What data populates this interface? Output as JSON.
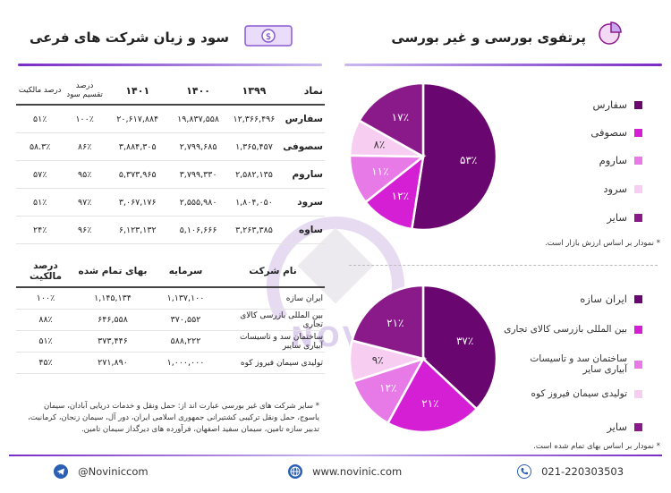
{
  "colors": {
    "dark_purple": "#6a0670",
    "magenta": "#d41fd4",
    "pink": "#e87ae8",
    "light_pink": "#f7cdf2",
    "purple": "#8a1a8a",
    "accent_line": "#7a2cc6"
  },
  "right_panel": {
    "title": "پرتفوی بورسی و غیر بورسی",
    "title_icon": "pie-chart-icon",
    "legend_top": [
      "سفارس",
      "سصوفی",
      "ساروم",
      "سرود",
      "سایر"
    ],
    "note_top": "* نمودار بر اساس ارزش بازار است.",
    "legend_bottom": [
      "ایران سازه",
      "بین المللی بازرسی کالای تجاری",
      "ساختمان سد و تاسیسات آبیاری سایر",
      "تولیدی سیمان فیروز کوه",
      "سایر"
    ],
    "note_bottom": "* نمودار بر اساس بهای تمام شده است."
  },
  "left_panel": {
    "title": "سود و زیان شرکت های فرعی",
    "title_icon": "money-bill-icon",
    "table1": {
      "headers": [
        "نماد",
        "۱۳۹۹",
        "۱۴۰۰",
        "۱۴۰۱",
        "درصد تقسیم سود",
        "درصد مالکیت"
      ],
      "rows": [
        [
          "سفارس",
          "۱۲,۳۶۶,۴۹۶",
          "۱۹,۸۳۷,۵۵۸",
          "۲۰,۶۱۷,۸۸۴",
          "۱۰۰٪",
          "۵۱٪"
        ],
        [
          "سصوفی",
          "۱,۳۶۵,۴۵۷",
          "۲,۷۹۹,۶۸۵",
          "۳,۸۸۴,۳۰۵",
          "۸۶٪",
          "۵۸.۳٪"
        ],
        [
          "ساروم",
          "۲,۵۸۲,۱۳۵",
          "۳,۷۹۹,۳۳۰",
          "۵,۳۷۳,۹۶۵",
          "۹۵٪",
          "۵۷٪"
        ],
        [
          "سرود",
          "۱,۸۰۴,۰۵۰",
          "۲,۵۵۵,۹۸۰",
          "۳,۰۶۷,۱۷۶",
          "۹۷٪",
          "۵۱٪"
        ],
        [
          "ساوه",
          "۳,۲۶۳,۳۸۵",
          "۵,۱۰۶,۶۶۶",
          "۶,۱۲۳,۱۳۲",
          "۹۶٪",
          "۲۴٪"
        ]
      ]
    },
    "table2": {
      "headers": [
        "نام شرکت",
        "سرمایه",
        "بهای تمام شده",
        "درصد مالکیت"
      ],
      "rows": [
        [
          "ایران سازه",
          "۱,۱۳۷,۱۰۰",
          "۱,۱۴۵,۱۳۴",
          "۱۰۰٪"
        ],
        [
          "بین المللی بازرسی کالای تجاری",
          "۳۷۰,۵۵۲",
          "۶۴۶,۵۵۸",
          "۸۸٪"
        ],
        [
          "ساختمان سد و تاسیسات آبیاری سایبر",
          "۵۸۸,۲۲۲",
          "۳۷۳,۴۴۶",
          "۵۱٪"
        ],
        [
          "تولیدی سیمان فیروز کوه",
          "۱,۰۰۰,۰۰۰",
          "۲۷۱,۸۹۰",
          "۴۵٪"
        ]
      ]
    },
    "note": "* سایر شرکت های غیر بورسی عبارت اند از: حمل ونقل و خدمات دریایی آبادان، سیمان یاسوج، حمل ونقل ترکیبی کشتیرانی جمهوری اسلامی ایران، دور آل، سیمان زنجان، کرمانیت، تدبیر سازه تامین، سیمان سفید اصفهان، فرآورده های دیرگداز سیمان تامین."
  },
  "chart_data": [
    {
      "type": "pie",
      "slices": [
        {
          "label": "سفارس",
          "value": 53,
          "text": "۵۳٪",
          "color": "#6a0670"
        },
        {
          "label": "سصوفی",
          "value": 12,
          "text": "۱۲٪",
          "color": "#d41fd4"
        },
        {
          "label": "ساروم",
          "value": 11,
          "text": "۱۱٪",
          "color": "#e87ae8"
        },
        {
          "label": "سرود",
          "value": 8,
          "text": "۸٪",
          "color": "#f7cdf2"
        },
        {
          "label": "سایر",
          "value": 17,
          "text": "۱۷٪",
          "color": "#8a1a8a"
        }
      ]
    },
    {
      "type": "pie",
      "slices": [
        {
          "label": "ایران سازه",
          "value": 37,
          "text": "۳۷٪",
          "color": "#6a0670"
        },
        {
          "label": "بین المللی بازرسی کالای تجاری",
          "value": 21,
          "text": "۲۱٪",
          "color": "#d41fd4"
        },
        {
          "label": "ساختمان سد و تاسیسات آبیاری سایر",
          "value": 12,
          "text": "۱۲٪",
          "color": "#e87ae8"
        },
        {
          "label": "تولیدی سیمان فیروز کوه",
          "value": 9,
          "text": "۹٪",
          "color": "#f7cdf2"
        },
        {
          "label": "سایر",
          "value": 21,
          "text": "۲۱٪",
          "color": "#8a1a8a"
        }
      ]
    }
  ],
  "watermark": {
    "text": "NOVINIC"
  },
  "footer": {
    "telegram": "@Noviniccom",
    "telegram_icon": "telegram-icon",
    "website": "www.novinic.com",
    "website_icon": "globe-icon",
    "phone": "021-220303503",
    "phone_icon": "phone-icon"
  }
}
